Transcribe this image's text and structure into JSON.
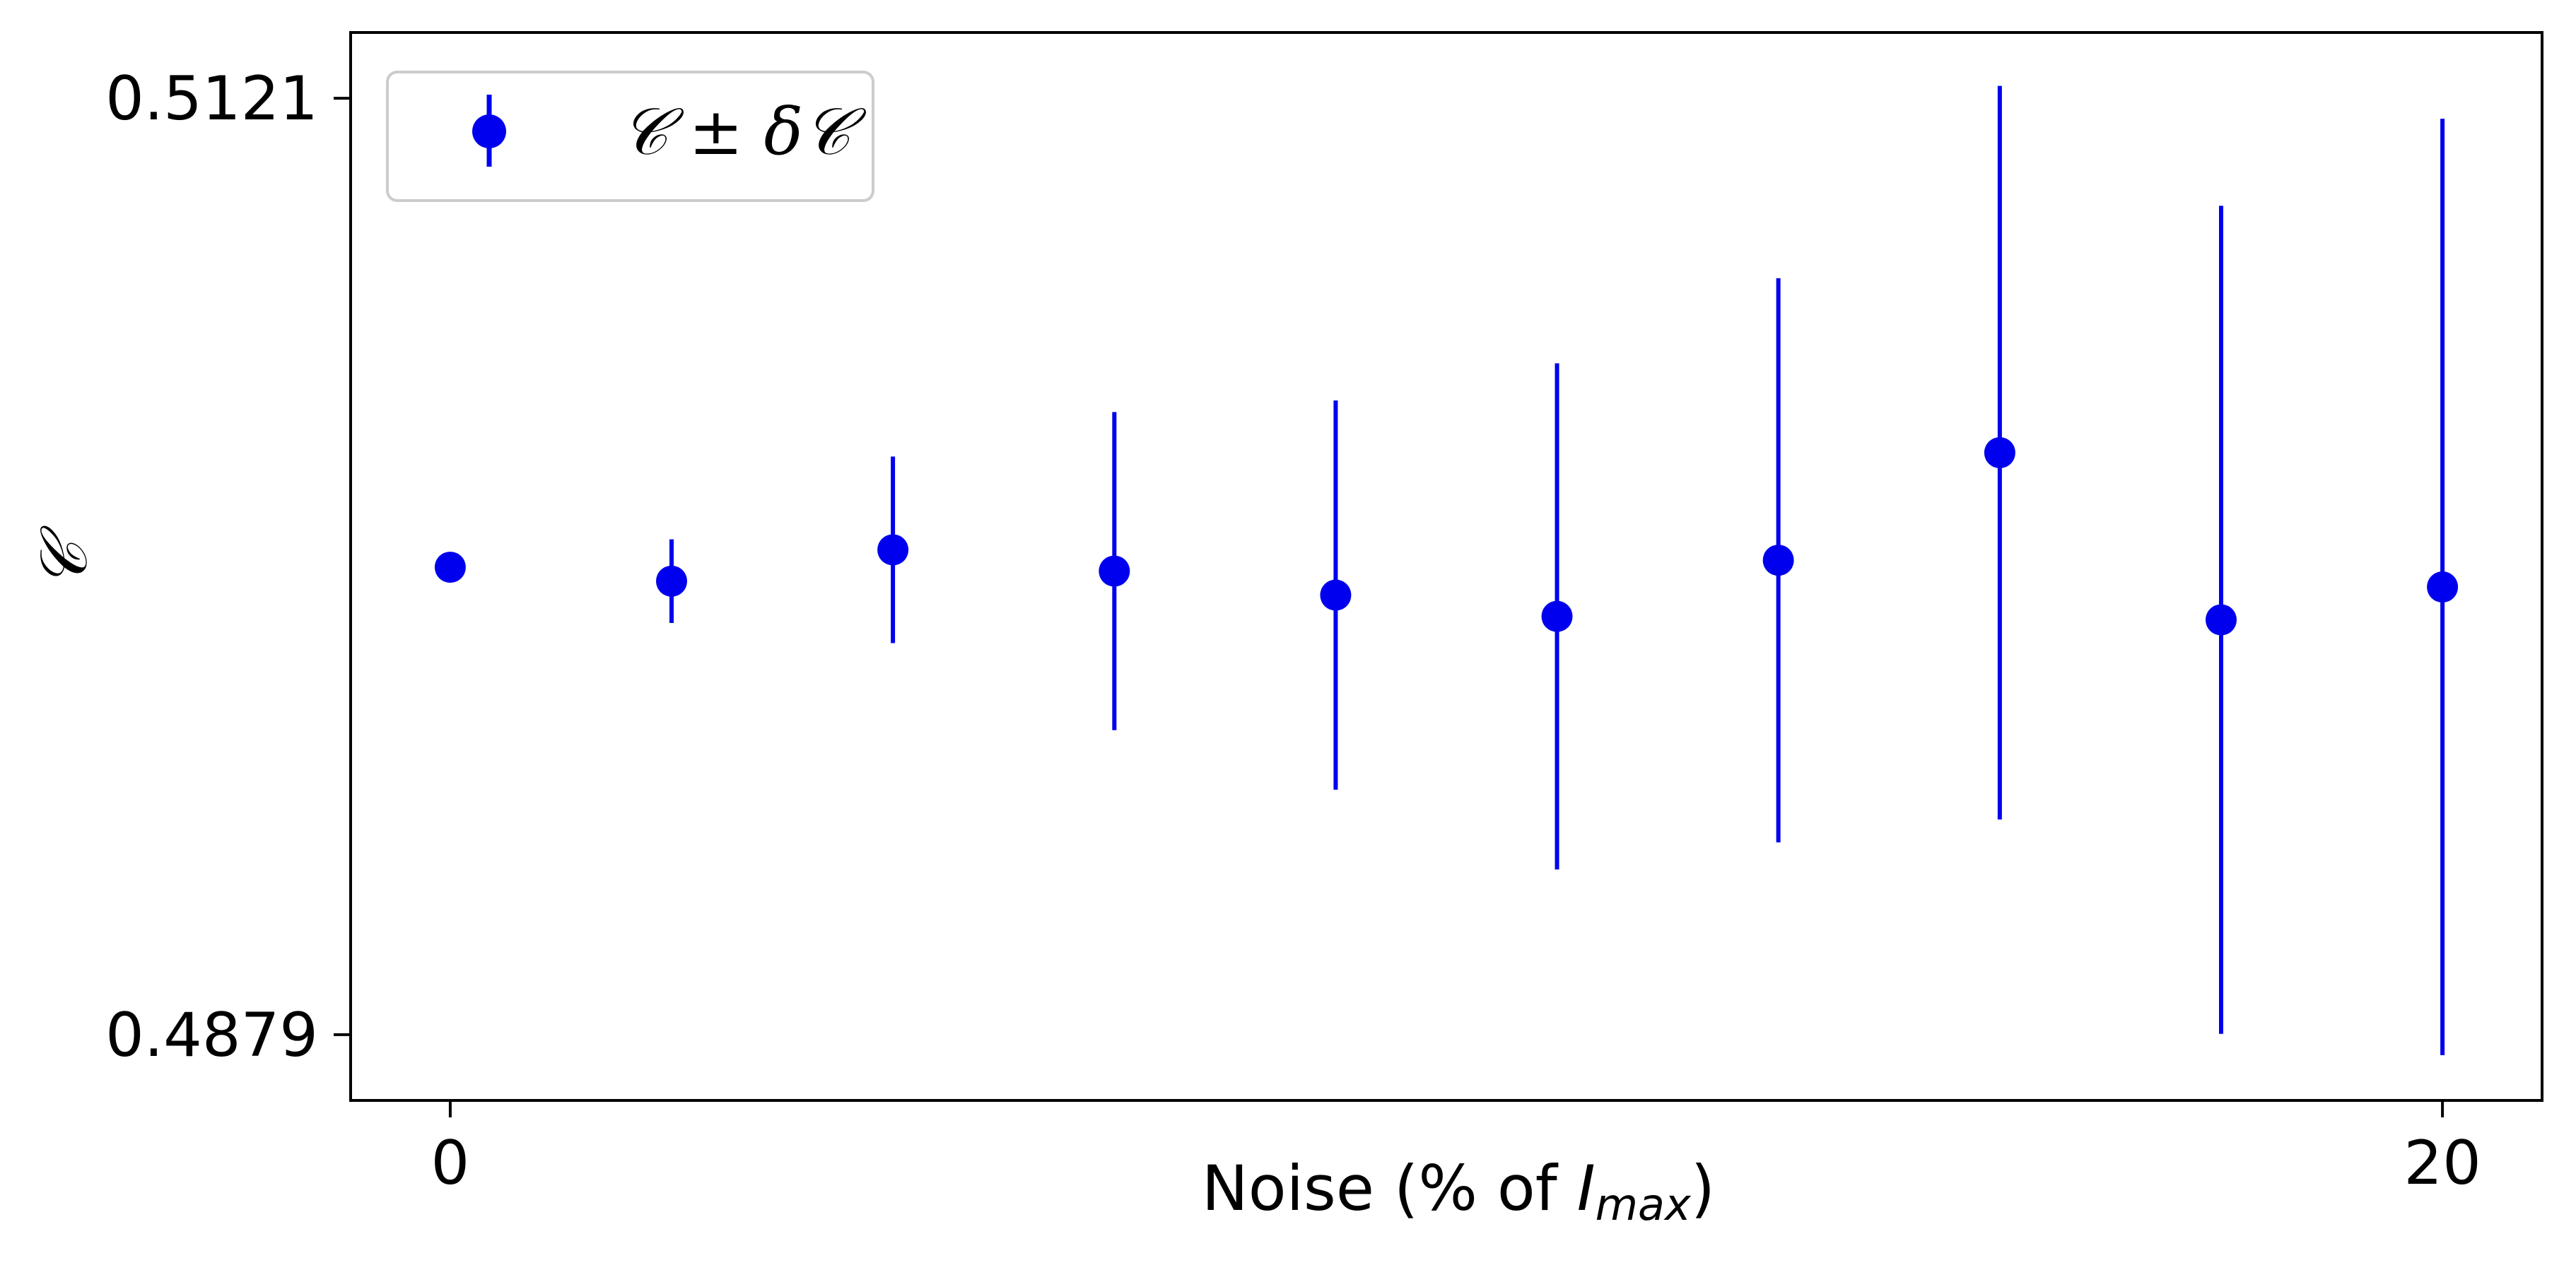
{
  "chart_data": {
    "type": "scatter",
    "title": "",
    "xlabel": {
      "prefix": "Noise (% of ",
      "var": "I",
      "sub": "max",
      "suffix": ")"
    },
    "ylabel": "𝒞",
    "x_ticks": [
      {
        "value": 0,
        "label": "0"
      },
      {
        "value": 20,
        "label": "20"
      }
    ],
    "y_ticks": [
      {
        "value": 0.4879,
        "label": "0.4879"
      },
      {
        "value": 0.5121,
        "label": "0.5121"
      }
    ],
    "xlim": [
      -1,
      21
    ],
    "ylim": [
      0.4862,
      0.5138
    ],
    "grid": false,
    "legend": {
      "location": "upper-left",
      "entries": [
        {
          "label": "𝒞 ± δ𝒞"
        }
      ]
    },
    "series": [
      {
        "color": "#0000ee",
        "marker": "circle",
        "points": [
          {
            "x": 0,
            "y": 0.49998,
            "err": 0.0
          },
          {
            "x": 2.222,
            "y": 0.49962,
            "err": 0.00108
          },
          {
            "x": 4.444,
            "y": 0.50043,
            "err": 0.00241
          },
          {
            "x": 6.667,
            "y": 0.49988,
            "err": 0.00411
          },
          {
            "x": 8.889,
            "y": 0.49926,
            "err": 0.00503
          },
          {
            "x": 11.111,
            "y": 0.49871,
            "err": 0.00654
          },
          {
            "x": 13.333,
            "y": 0.50016,
            "err": 0.00729
          },
          {
            "x": 15.556,
            "y": 0.50294,
            "err": 0.00948
          },
          {
            "x": 17.778,
            "y": 0.49862,
            "err": 0.0107
          },
          {
            "x": 20,
            "y": 0.49947,
            "err": 0.0121
          }
        ]
      }
    ]
  }
}
